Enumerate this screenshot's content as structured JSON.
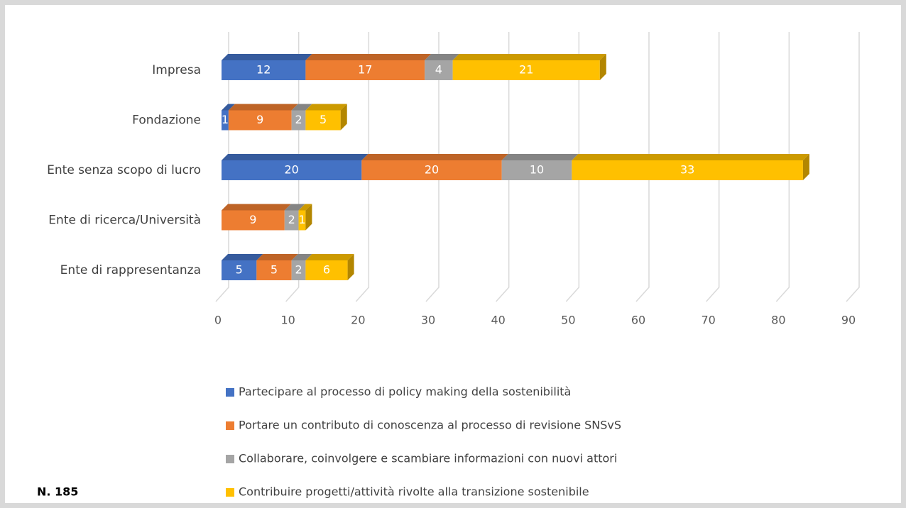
{
  "chart_data": {
    "type": "bar",
    "orientation": "horizontal",
    "stacked": true,
    "categories": [
      "Impresa",
      "Fondazione",
      "Ente senza scopo di lucro",
      "Ente di ricerca/Università",
      "Ente di rappresentanza"
    ],
    "series": [
      {
        "name": "Partecipare al processo di policy making della sostenibilità",
        "color": "#4472c4",
        "values": [
          12,
          1,
          20,
          null,
          5
        ]
      },
      {
        "name": "Portare un contributo di conoscenza al processo di revisione SNSvS",
        "color": "#ed7d31",
        "values": [
          17,
          9,
          20,
          9,
          5
        ]
      },
      {
        "name": "Collaborare, coinvolgere e scambiare informazioni con nuovi attori",
        "color": "#a5a5a5",
        "values": [
          4,
          2,
          10,
          2,
          2
        ]
      },
      {
        "name": "Contribuire progetti/attività rivolte alla transizione sostenibile",
        "color": "#ffc000",
        "values": [
          21,
          5,
          33,
          1,
          6
        ]
      }
    ],
    "xlim": [
      0,
      90
    ],
    "xticks": [
      0,
      10,
      20,
      30,
      40,
      50,
      60,
      70,
      80,
      90
    ],
    "grid": true,
    "legend": "bottom",
    "note": "N. 185"
  }
}
